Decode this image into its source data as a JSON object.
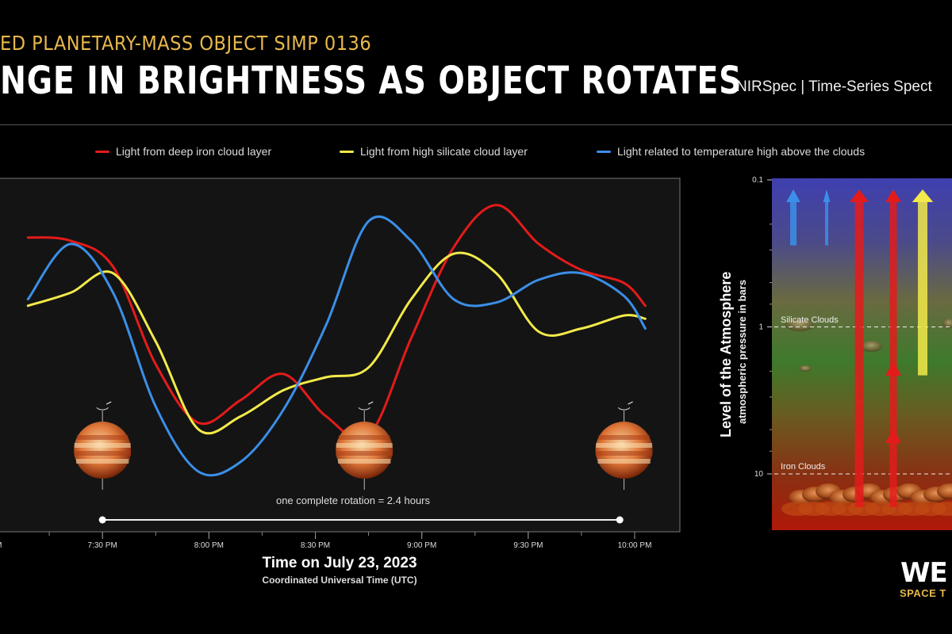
{
  "header": {
    "supertitle": "ED PLANETARY-MASS OBJECT SIMP 0136",
    "title": "NGE IN BRIGHTNESS AS OBJECT ROTATES",
    "instrument": "NIRSpec | Time-Series Spect"
  },
  "legend": [
    {
      "label": "Light from deep iron cloud layer",
      "color": "#e41b1b"
    },
    {
      "label": "Light from high silicate cloud layer",
      "color": "#f2ea4a"
    },
    {
      "label": "Light related to temperature high above the clouds",
      "color": "#3b8fe8"
    }
  ],
  "chart_data": [
    {
      "type": "line",
      "xlabel": "Time on July 23, 2023",
      "xsublabel": "Coordinated Universal Time (UTC)",
      "x_ticks": [
        "PM",
        "7:30 PM",
        "8:00 PM",
        "8:30 PM",
        "9:00 PM",
        "9:30 PM",
        "10:00 PM"
      ],
      "x_tick_times": [
        7.0,
        7.5,
        8.0,
        8.5,
        9.0,
        9.5,
        10.0
      ],
      "x": [
        7.15,
        7.35,
        7.55,
        7.75,
        7.95,
        8.15,
        8.35,
        8.55,
        8.75,
        8.95,
        9.15,
        9.35,
        9.55,
        9.75,
        9.95,
        10.05
      ],
      "ylim": [
        0,
        1
      ],
      "series": [
        {
          "name": "Light from deep iron cloud layer",
          "color": "#e41b1b",
          "values": [
            0.83,
            0.82,
            0.74,
            0.44,
            0.26,
            0.33,
            0.41,
            0.28,
            0.22,
            0.52,
            0.8,
            0.93,
            0.81,
            0.73,
            0.69,
            0.62
          ]
        },
        {
          "name": "Light from high silicate cloud layer",
          "color": "#f2ea4a",
          "values": [
            0.62,
            0.66,
            0.72,
            0.51,
            0.24,
            0.28,
            0.36,
            0.4,
            0.43,
            0.64,
            0.78,
            0.72,
            0.54,
            0.55,
            0.59,
            0.58
          ]
        },
        {
          "name": "Light related to temperature high above the clouds",
          "color": "#3b8fe8",
          "values": [
            0.64,
            0.81,
            0.66,
            0.31,
            0.11,
            0.14,
            0.3,
            0.56,
            0.88,
            0.82,
            0.64,
            0.63,
            0.7,
            0.72,
            0.65,
            0.55
          ]
        }
      ],
      "planet_times": [
        7.5,
        8.73,
        9.95
      ],
      "rotation_label": "one complete rotation = 2.4 hours",
      "rotation_span": [
        7.5,
        9.93
      ]
    },
    {
      "type": "diagram",
      "ylabel": "Level of the Atmosphere",
      "ysublabel": "atmospheric pressure in bars",
      "y_ticks": [
        "0.1",
        "1",
        "10"
      ],
      "y_tick_values": [
        0.1,
        1,
        10
      ],
      "ylim": [
        0.1,
        30
      ],
      "scale": "log",
      "layers": [
        {
          "label": "Silicate Clouds",
          "pressure": 1
        },
        {
          "label": "Iron Clouds",
          "pressure": 10
        }
      ],
      "arrows": [
        {
          "color": "#3b8fe8",
          "from": 0.15,
          "to": 0.1
        },
        {
          "color": "#3b8fe8",
          "from": 0.15,
          "to": 0.1
        },
        {
          "color": "#e41b1b",
          "from": 10,
          "to": 0.1
        },
        {
          "color": "#e41b1b",
          "from": 10,
          "to": 0.1
        },
        {
          "color": "#f2ea4a",
          "from": 1.3,
          "to": 0.1
        }
      ]
    }
  ],
  "logo": {
    "main": "WE",
    "sub": "SPACE T"
  }
}
